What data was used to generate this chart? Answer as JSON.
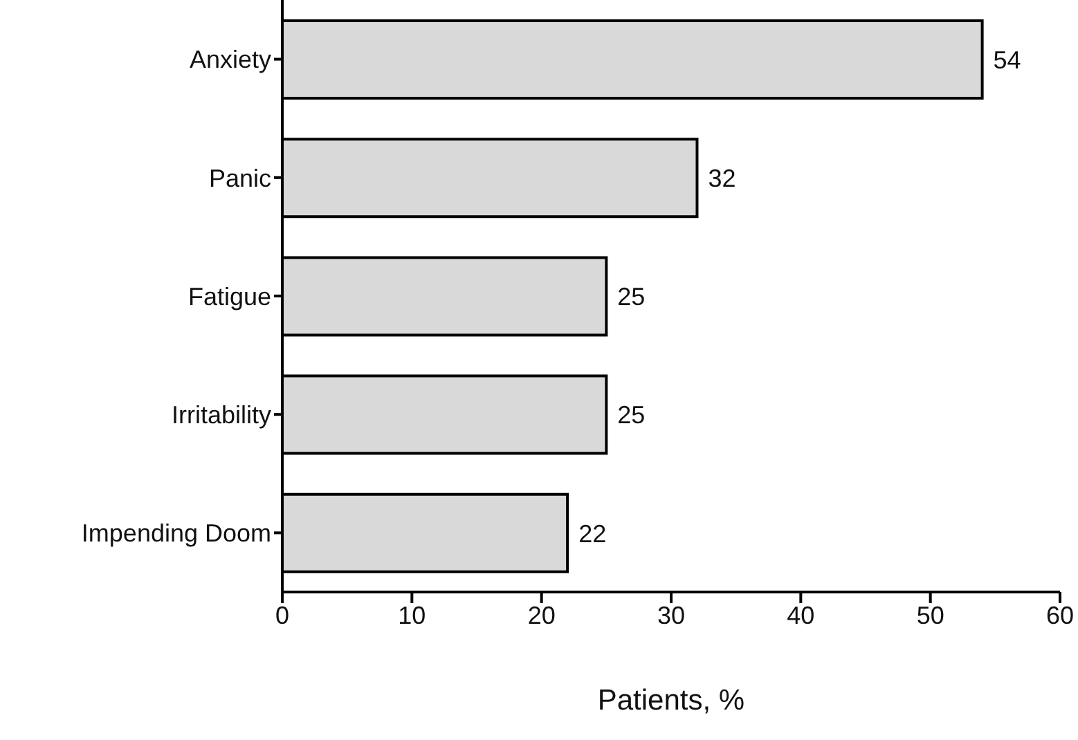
{
  "chart_data": {
    "type": "bar",
    "orientation": "horizontal",
    "xlabel": "Patients, %",
    "categories": [
      "Anxiety",
      "Panic",
      "Fatigue",
      "Irritability",
      "Impending Doom"
    ],
    "values": [
      54,
      32,
      25,
      25,
      22
    ],
    "color": "#d9d9d9",
    "xlim": [
      0,
      60
    ],
    "xticks": [
      0,
      10,
      20,
      30,
      40,
      50,
      60
    ],
    "data_labels": true,
    "grid": false,
    "legend": false
  }
}
